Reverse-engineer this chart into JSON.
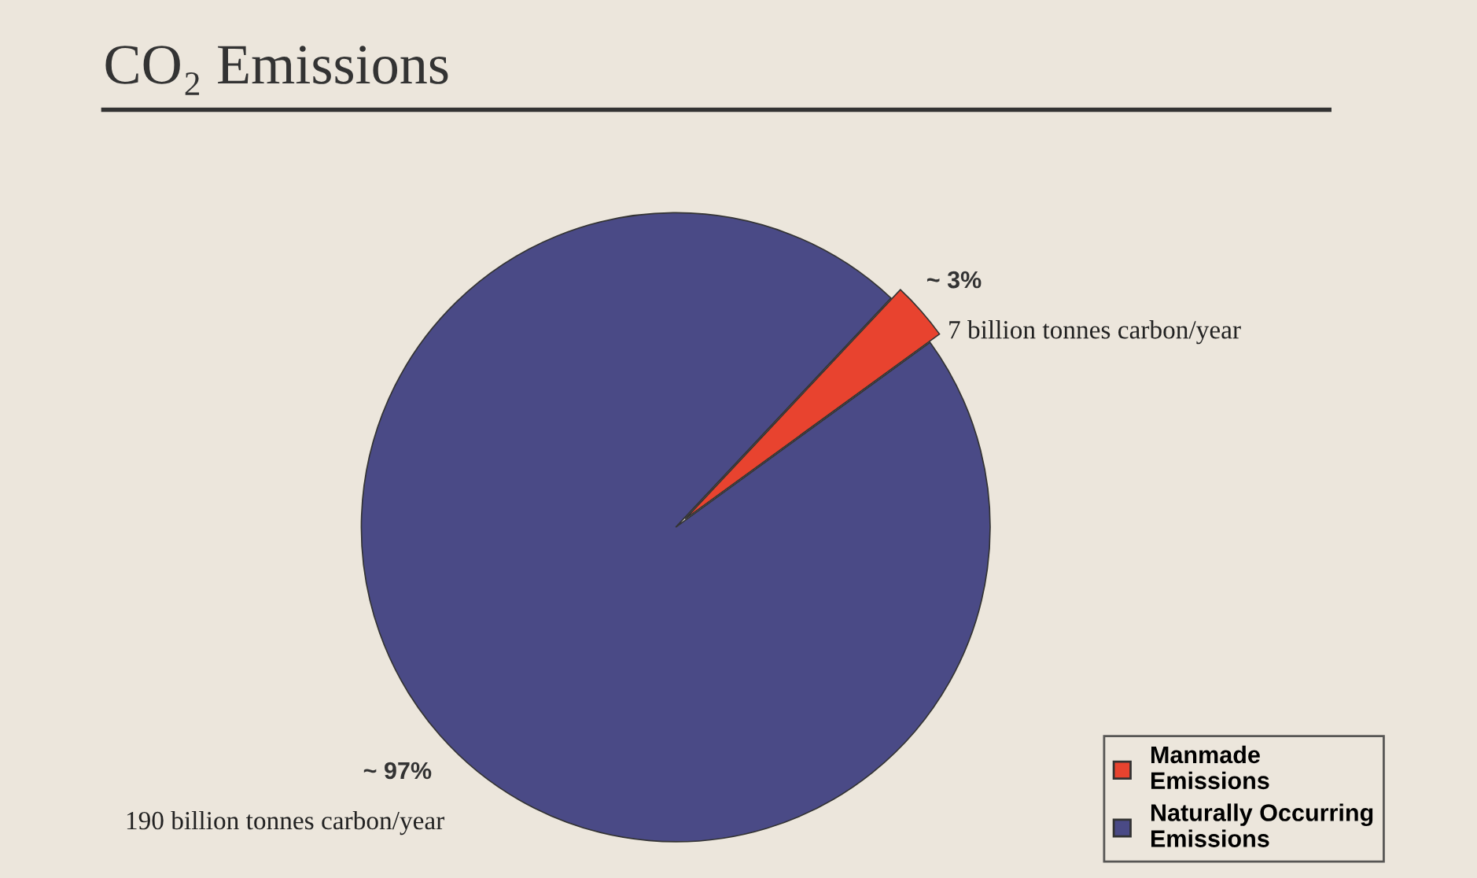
{
  "chart_data": {
    "type": "pie",
    "title": "CO₂ Emissions",
    "categories": [
      "Manmade Emissions",
      "Naturally Occurring Emissions"
    ],
    "values": [
      3,
      97
    ],
    "colors": [
      "#e8432f",
      "#4a4a86"
    ],
    "value_labels": [
      "~ 3%",
      "~ 97%"
    ],
    "annotations": [
      "7 billion tonnes carbon/year",
      "190 billion tonnes carbon/year"
    ],
    "legend": "bottom right"
  }
}
